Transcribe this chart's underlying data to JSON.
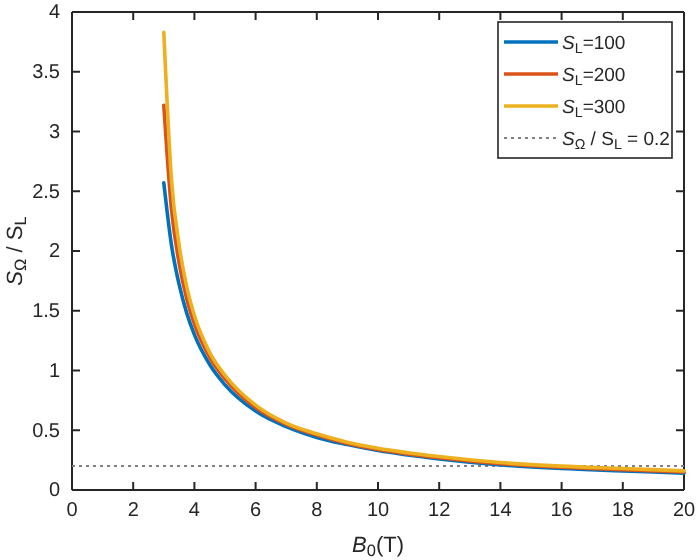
{
  "chart_data": {
    "type": "line",
    "xlabel": "B$_{0}$(T)",
    "ylabel": "S$_{Ω}$ / S$_{L}$",
    "xlim": [
      0,
      20
    ],
    "xticks": [
      0,
      2,
      4,
      6,
      8,
      10,
      12,
      14,
      16,
      18,
      20
    ],
    "ylim": [
      0,
      4
    ],
    "yticks": [
      0,
      0.5,
      1,
      1.5,
      2,
      2.5,
      3,
      3.5,
      4
    ],
    "grid": false,
    "legend": "top right",
    "line_style": "solid",
    "marker": "none",
    "series": [
      {
        "name": "S$_{L}$=100",
        "color": "#0072bd",
        "x": [
          3,
          3.25,
          3.5,
          3.75,
          4,
          4.5,
          5,
          6,
          7,
          8,
          9,
          10,
          12,
          14,
          16,
          18,
          20
        ],
        "values": [
          2.57,
          2.05,
          1.72,
          1.48,
          1.3,
          1.05,
          0.88,
          0.66,
          0.53,
          0.44,
          0.38,
          0.33,
          0.26,
          0.21,
          0.18,
          0.16,
          0.14
        ]
      },
      {
        "name": "S$_{L}$=200",
        "color": "#d95319",
        "x": [
          3,
          3.25,
          3.5,
          3.75,
          4,
          4.5,
          5,
          6,
          7,
          8,
          9,
          10,
          12,
          14,
          16,
          18,
          20
        ],
        "values": [
          3.22,
          2.35,
          1.9,
          1.6,
          1.39,
          1.11,
          0.93,
          0.69,
          0.55,
          0.46,
          0.39,
          0.34,
          0.27,
          0.22,
          0.19,
          0.17,
          0.15
        ]
      },
      {
        "name": "S$_{L}$=300",
        "color": "#edb120",
        "x": [
          3,
          3.25,
          3.5,
          3.75,
          4,
          4.5,
          5,
          6,
          7,
          8,
          9,
          10,
          12,
          14,
          16,
          18,
          20
        ],
        "values": [
          3.83,
          2.6,
          2.05,
          1.7,
          1.46,
          1.15,
          0.96,
          0.71,
          0.56,
          0.47,
          0.4,
          0.35,
          0.28,
          0.23,
          0.2,
          0.18,
          0.16
        ]
      }
    ],
    "ref_lines": [
      {
        "axis": "y",
        "value": 0.2,
        "label": "S$_{Ω}$ / S$_{L}$ = 0.2",
        "color": "#808080",
        "line_style": "dotted"
      }
    ]
  }
}
